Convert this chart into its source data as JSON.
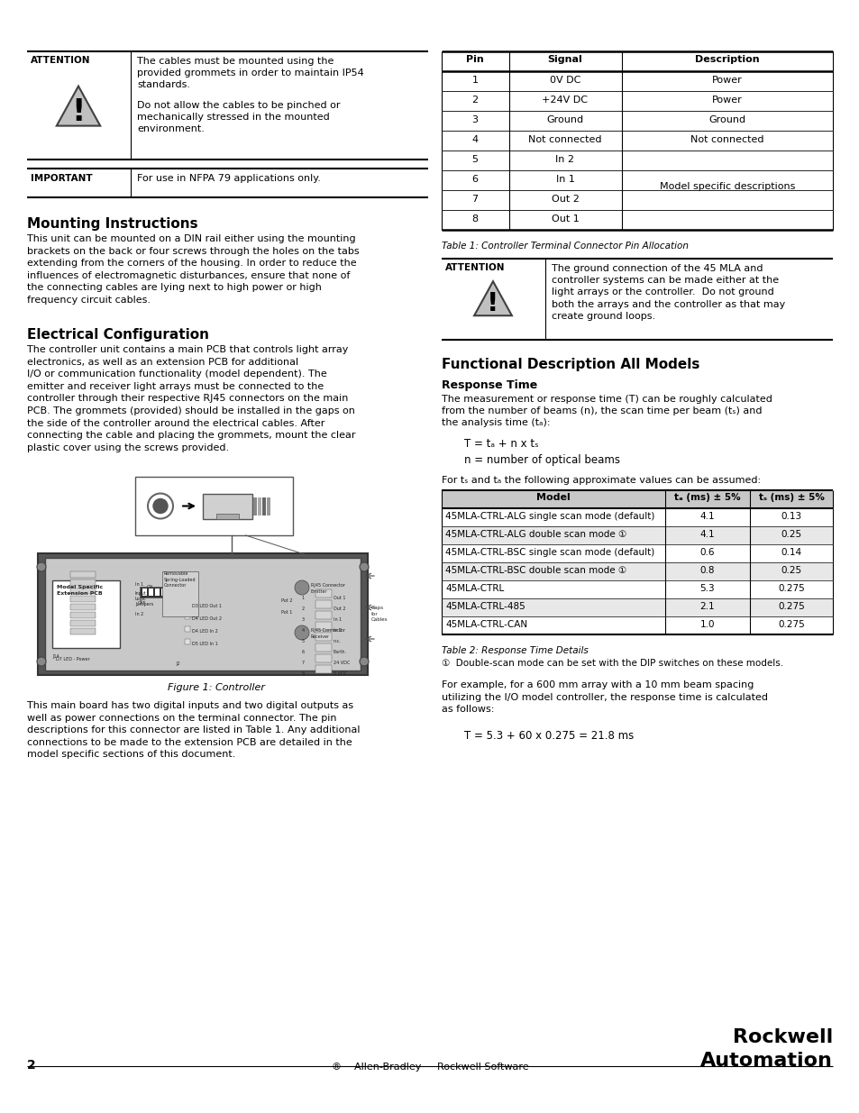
{
  "page_num": "2",
  "footer_center": "®    Allen-Bradley  ·  Rockwell Software",
  "footer_logo": "Rockwell\nAutomation",
  "attention_1_label": "ATTENTION",
  "attention_1_text1": "The cables must be mounted using the\nprovided grommets in order to maintain IP54\nstandards.",
  "attention_1_text2": "Do not allow the cables to be pinched or\nmechanically stressed in the mounted\nenvironment.",
  "important_label": "IMPORTANT",
  "important_text": "For use in NFPA 79 applications only.",
  "mounting_title": "Mounting Instructions",
  "mounting_text": "This unit can be mounted on a DIN rail either using the mounting\nbrackets on the back or four screws through the holes on the tabs\nextending from the corners of the housing. In order to reduce the\ninfluences of electromagnetic disturbances, ensure that none of\nthe connecting cables are lying next to high power or high\nfrequency circuit cables.",
  "electrical_title": "Electrical Configuration",
  "electrical_text": "The controller unit contains a main PCB that controls light array\nelectronics, as well as an extension PCB for additional\nI/O or communication functionality (model dependent). The\nemitter and receiver light arrays must be connected to the\ncontroller through their respective RJ45 connectors on the main\nPCB. The grommets (provided) should be installed in the gaps on\nthe side of the controller around the electrical cables. After\nconnecting the cable and placing the grommets, mount the clear\nplastic cover using the screws provided.",
  "figure1_caption": "Figure 1: Controller",
  "main_board_text": "This main board has two digital inputs and two digital outputs as\nwell as power connections on the terminal connector. The pin\ndescriptions for this connector are listed in Table 1. Any additional\nconnections to be made to the extension PCB are detailed in the\nmodel specific sections of this document.",
  "table1_caption": "Table 1: Controller Terminal Connector Pin Allocation",
  "table1_headers": [
    "Pin",
    "Signal",
    "Description"
  ],
  "table1_rows": [
    [
      "1",
      "0V DC",
      "Power"
    ],
    [
      "2",
      "+24V DC",
      "Power"
    ],
    [
      "3",
      "Ground",
      "Ground"
    ],
    [
      "4",
      "Not connected",
      "Not connected"
    ],
    [
      "5",
      "In 2",
      ""
    ],
    [
      "6",
      "In 1",
      "Model specific descriptions"
    ],
    [
      "7",
      "Out 2",
      ""
    ],
    [
      "8",
      "Out 1",
      ""
    ]
  ],
  "attention_2_label": "ATTENTION",
  "attention_2_text": "The ground connection of the 45 MLA and\ncontroller systems can be made either at the\nlight arrays or the controller.  Do not ground\nboth the arrays and the controller as that may\ncreate ground loops.",
  "functional_title": "Functional Description All Models",
  "response_title": "Response Time",
  "response_line1": "The measurement or response time (T) can be roughly calculated",
  "response_line2": "from the number of beams (n), the scan time per beam (tₛ) and",
  "response_line3": "the analysis time (tₐ):",
  "formula1": "T = tₐ + n x tₛ",
  "formula2": "n = number of optical beams",
  "for_text": "For tₛ and tₐ the following approximate values can be assumed:",
  "table2_caption": "Table 2: Response Time Details",
  "table2_headers": [
    "Model",
    "tₐ (ms) ± 5%",
    "tₛ (ms) ± 5%"
  ],
  "table2_rows": [
    [
      "45MLA-CTRL-ALG single scan mode (default)",
      "4.1",
      "0.13"
    ],
    [
      "45MLA-CTRL-ALG double scan mode ①",
      "4.1",
      "0.25"
    ],
    [
      "45MLA-CTRL-BSC single scan mode (default)",
      "0.6",
      "0.14"
    ],
    [
      "45MLA-CTRL-BSC double scan mode ①",
      "0.8",
      "0.25"
    ],
    [
      "45MLA-CTRL",
      "5.3",
      "0.275"
    ],
    [
      "45MLA-CTRL-485",
      "2.1",
      "0.275"
    ],
    [
      "45MLA-CTRL-CAN",
      "1.0",
      "0.275"
    ]
  ],
  "note_text": "①  Double-scan mode can be set with the DIP switches on these models.",
  "example_text": "For example, for a 600 mm array with a 10 mm beam spacing\nutilizing the I/O model controller, the response time is calculated\nas follows:",
  "example_formula": "T = 5.3 + 60 x 0.275 = 21.8 ms",
  "bg_color": "#ffffff",
  "gray_header": "#c8c8c8",
  "alt_row": "#e8e8e8"
}
